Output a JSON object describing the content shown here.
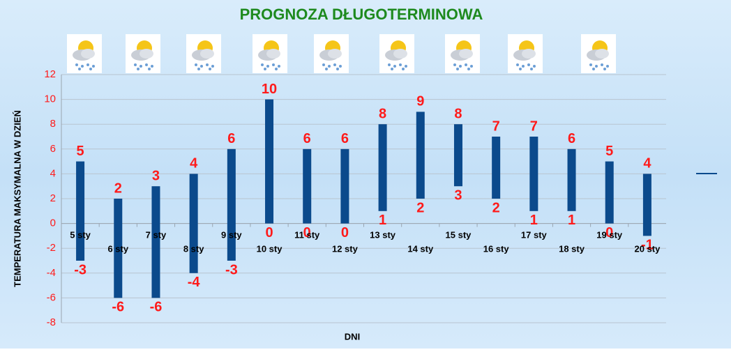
{
  "chart_data": {
    "type": "range_bar",
    "title": "PROGNOZA DŁUGOTERMINOWA",
    "x_label": "DNI",
    "y_label": "TEMPERATURA MAKSYMALNA W DZIEŃ",
    "categories": [
      "5 sty",
      "6 sty",
      "7 sty",
      "8 sty",
      "9 sty",
      "10 sty",
      "11 sty",
      "12 sty",
      "13 sty",
      "14 sty",
      "15 sty",
      "16 sty",
      "17 sty",
      "18 sty",
      "19 sty",
      "20 sty"
    ],
    "high": [
      5,
      2,
      3,
      4,
      6,
      10,
      6,
      6,
      8,
      9,
      8,
      7,
      7,
      6,
      5,
      4
    ],
    "low": [
      -3,
      -6,
      -6,
      -4,
      -3,
      0,
      0,
      0,
      1,
      2,
      3,
      2,
      1,
      1,
      0,
      -1
    ],
    "color": "#0b4a8c",
    "label_color": "#ff1a1a",
    "ylim": [
      -8,
      12
    ],
    "yticks": [
      -8,
      -6,
      -4,
      -2,
      0,
      2,
      4,
      6,
      8,
      10,
      12
    ],
    "grid": true
  }
}
